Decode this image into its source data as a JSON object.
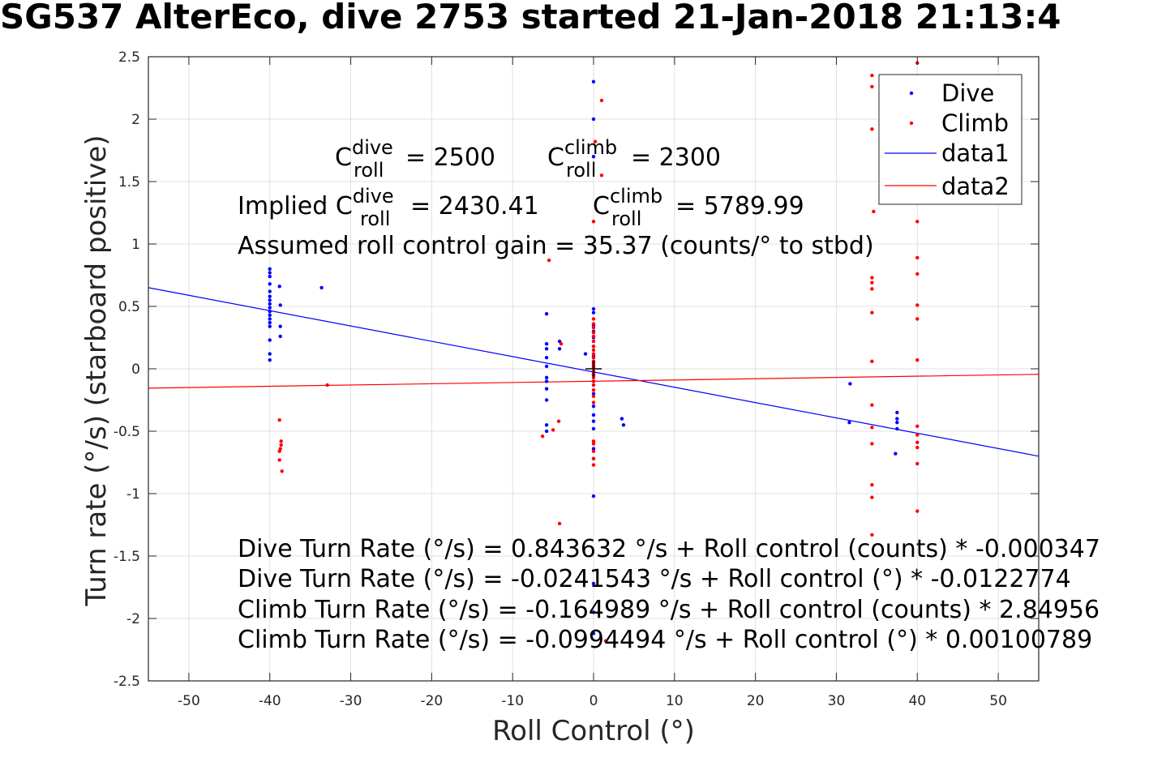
{
  "title": "SG537 AlterEco, dive 2753 started 21-Jan-2018 21:13:4",
  "annotations": {
    "c_prefix": "C",
    "roll_sub": "roll",
    "dive_sup": "dive",
    "climb_sup": "climb",
    "c_dive_value": "= 2500",
    "c_climb_value": "= 2300",
    "implied_prefix": "Implied C",
    "implied_dive_value": "= 2430.41",
    "implied_climb_value": "= 5789.99",
    "gain_text": "Assumed roll control gain = 35.37 (counts/° to stbd)",
    "eq1": "Dive Turn Rate (°/s) = 0.843632 °/s + Roll control (counts) * -0.000347",
    "eq2": "Dive Turn Rate (°/s) = -0.0241543 °/s + Roll control (°) * -0.0122774",
    "eq3": "Climb Turn Rate (°/s) = -0.164989 °/s + Roll control (counts) * 2.84956",
    "eq4": "Climb Turn Rate (°/s) = -0.0994494 °/s + Roll control (°) * 0.00100789"
  },
  "colors": {
    "dive": "#0000ff",
    "climb": "#ff0000",
    "grid": "#e0e0e0",
    "axis": "#262626"
  },
  "chart_data": {
    "type": "scatter",
    "xlabel": "Roll Control (°)",
    "ylabel": "Turn rate (°/s) (starboard positive)",
    "xlim": [
      -55,
      55
    ],
    "ylim": [
      -2.5,
      2.5
    ],
    "xticks": [
      -50,
      -40,
      -30,
      -20,
      -10,
      0,
      10,
      20,
      30,
      40,
      50
    ],
    "yticks": [
      -2.5,
      -2,
      -1.5,
      -1,
      -0.5,
      0,
      0.5,
      1,
      1.5,
      2,
      2.5
    ],
    "xtick_labels": [
      "-50",
      "-40",
      "-30",
      "-20",
      "-10",
      "0",
      "10",
      "20",
      "30",
      "40",
      "50"
    ],
    "ytick_labels": [
      "-2.5",
      "-2",
      "-1.5",
      "-1",
      "-0.5",
      "0",
      "0.5",
      "1",
      "1.5",
      "2",
      "2.5"
    ],
    "grid": true,
    "legend_position": "top-right",
    "center_marker": [
      0,
      0
    ],
    "series": [
      {
        "name": "Dive",
        "kind": "points",
        "points": [
          [
            -40,
            0.8
          ],
          [
            -40,
            0.77
          ],
          [
            -40,
            0.74
          ],
          [
            -40,
            0.68
          ],
          [
            -40,
            0.62
          ],
          [
            -40,
            0.58
          ],
          [
            -40,
            0.55
          ],
          [
            -40,
            0.52
          ],
          [
            -40,
            0.49
          ],
          [
            -40,
            0.46
          ],
          [
            -40,
            0.43
          ],
          [
            -40,
            0.4
          ],
          [
            -40,
            0.37
          ],
          [
            -40,
            0.34
          ],
          [
            -40,
            0.23
          ],
          [
            -40,
            0.12
          ],
          [
            -40,
            0.07
          ],
          [
            -38.8,
            0.66
          ],
          [
            -38.7,
            0.51
          ],
          [
            -38.7,
            0.34
          ],
          [
            -38.7,
            0.26
          ],
          [
            -33.6,
            0.65
          ],
          [
            -5.8,
            0.44
          ],
          [
            -5.8,
            0.2
          ],
          [
            -5.8,
            0.16
          ],
          [
            -5.8,
            0.09
          ],
          [
            -5.8,
            0.02
          ],
          [
            -5.8,
            -0.07
          ],
          [
            -5.8,
            -0.1
          ],
          [
            -5.8,
            -0.16
          ],
          [
            -5.8,
            -0.25
          ],
          [
            -5.8,
            -0.45
          ],
          [
            -5.8,
            -0.5
          ],
          [
            -4.2,
            0.22
          ],
          [
            -4.2,
            0.16
          ],
          [
            -1.0,
            0.12
          ],
          [
            0,
            2.3
          ],
          [
            0,
            2.0
          ],
          [
            0,
            1.7
          ],
          [
            0,
            0.48
          ],
          [
            0,
            0.45
          ],
          [
            0,
            0.35
          ],
          [
            0,
            0.3
          ],
          [
            0,
            0.25
          ],
          [
            0,
            0.18
          ],
          [
            0,
            0.1
          ],
          [
            0,
            0.05
          ],
          [
            0,
            0.02
          ],
          [
            0,
            -0.02
          ],
          [
            0,
            -0.05
          ],
          [
            0,
            -0.1
          ],
          [
            0,
            -0.2
          ],
          [
            0,
            -0.3
          ],
          [
            0,
            -0.37
          ],
          [
            0,
            -0.42
          ],
          [
            0,
            -0.48
          ],
          [
            0,
            -0.64
          ],
          [
            0,
            -0.72
          ],
          [
            0,
            -1.02
          ],
          [
            0,
            -1.72
          ],
          [
            0,
            -1.95
          ],
          [
            0,
            -2.12
          ],
          [
            3.5,
            -0.4
          ],
          [
            3.7,
            -0.45
          ],
          [
            31.6,
            -0.43
          ],
          [
            31.7,
            -0.12
          ],
          [
            37.5,
            -0.35
          ],
          [
            37.5,
            -0.4
          ],
          [
            37.5,
            -0.43
          ],
          [
            37.5,
            -0.48
          ],
          [
            37.3,
            -0.68
          ]
        ]
      },
      {
        "name": "Climb",
        "kind": "points",
        "points": [
          [
            -38.8,
            -0.41
          ],
          [
            -38.6,
            -0.58
          ],
          [
            -38.6,
            -0.61
          ],
          [
            -38.7,
            -0.64
          ],
          [
            -38.8,
            -0.66
          ],
          [
            -38.8,
            -0.73
          ],
          [
            -38.5,
            -0.82
          ],
          [
            -32.9,
            -0.13
          ],
          [
            -5.5,
            0.87
          ],
          [
            -4.0,
            0.2
          ],
          [
            -4.3,
            -0.42
          ],
          [
            -5.0,
            -0.49
          ],
          [
            -6.3,
            -0.54
          ],
          [
            -4.2,
            -1.24
          ],
          [
            1.0,
            2.15
          ],
          [
            0.2,
            1.82
          ],
          [
            1.0,
            1.55
          ],
          [
            0,
            1.18
          ],
          [
            0,
            0.4
          ],
          [
            0,
            0.36
          ],
          [
            0,
            0.33
          ],
          [
            0,
            0.29
          ],
          [
            0,
            0.26
          ],
          [
            0,
            0.22
          ],
          [
            0,
            0.18
          ],
          [
            0,
            0.15
          ],
          [
            0,
            0.12
          ],
          [
            0,
            0.09
          ],
          [
            0,
            0.06
          ],
          [
            0,
            0.03
          ],
          [
            0,
            0.01
          ],
          [
            0,
            -0.02
          ],
          [
            0,
            -0.04
          ],
          [
            0,
            -0.07
          ],
          [
            0,
            -0.1
          ],
          [
            0,
            -0.13
          ],
          [
            0,
            -0.17
          ],
          [
            0,
            -0.22
          ],
          [
            0,
            -0.27
          ],
          [
            0,
            -0.58
          ],
          [
            0,
            -0.6
          ],
          [
            0,
            -0.66
          ],
          [
            0,
            -0.72
          ],
          [
            0,
            -0.77
          ],
          [
            1.5,
            -2.18
          ],
          [
            34.4,
            2.35
          ],
          [
            34.4,
            2.26
          ],
          [
            34.4,
            1.92
          ],
          [
            34.6,
            1.26
          ],
          [
            34.4,
            0.73
          ],
          [
            34.4,
            0.69
          ],
          [
            34.4,
            0.64
          ],
          [
            34.4,
            0.45
          ],
          [
            34.4,
            0.06
          ],
          [
            34.4,
            -0.29
          ],
          [
            34.4,
            -0.47
          ],
          [
            34.4,
            -0.6
          ],
          [
            34.4,
            -0.93
          ],
          [
            34.4,
            -1.03
          ],
          [
            34.4,
            -1.33
          ],
          [
            40,
            2.45
          ],
          [
            40,
            1.18
          ],
          [
            40,
            0.89
          ],
          [
            40,
            0.76
          ],
          [
            40,
            0.51
          ],
          [
            40,
            0.4
          ],
          [
            40,
            0.07
          ],
          [
            40,
            -0.46
          ],
          [
            40,
            -0.53
          ],
          [
            40,
            -0.59
          ],
          [
            40,
            -0.63
          ],
          [
            40,
            -0.76
          ],
          [
            40,
            -1.14
          ]
        ]
      },
      {
        "name": "data1",
        "kind": "line",
        "points": [
          [
            -55,
            0.65
          ],
          [
            55,
            -0.7
          ]
        ]
      },
      {
        "name": "data2",
        "kind": "line",
        "points": [
          [
            -55,
            -0.155
          ],
          [
            55,
            -0.044
          ]
        ]
      }
    ]
  }
}
